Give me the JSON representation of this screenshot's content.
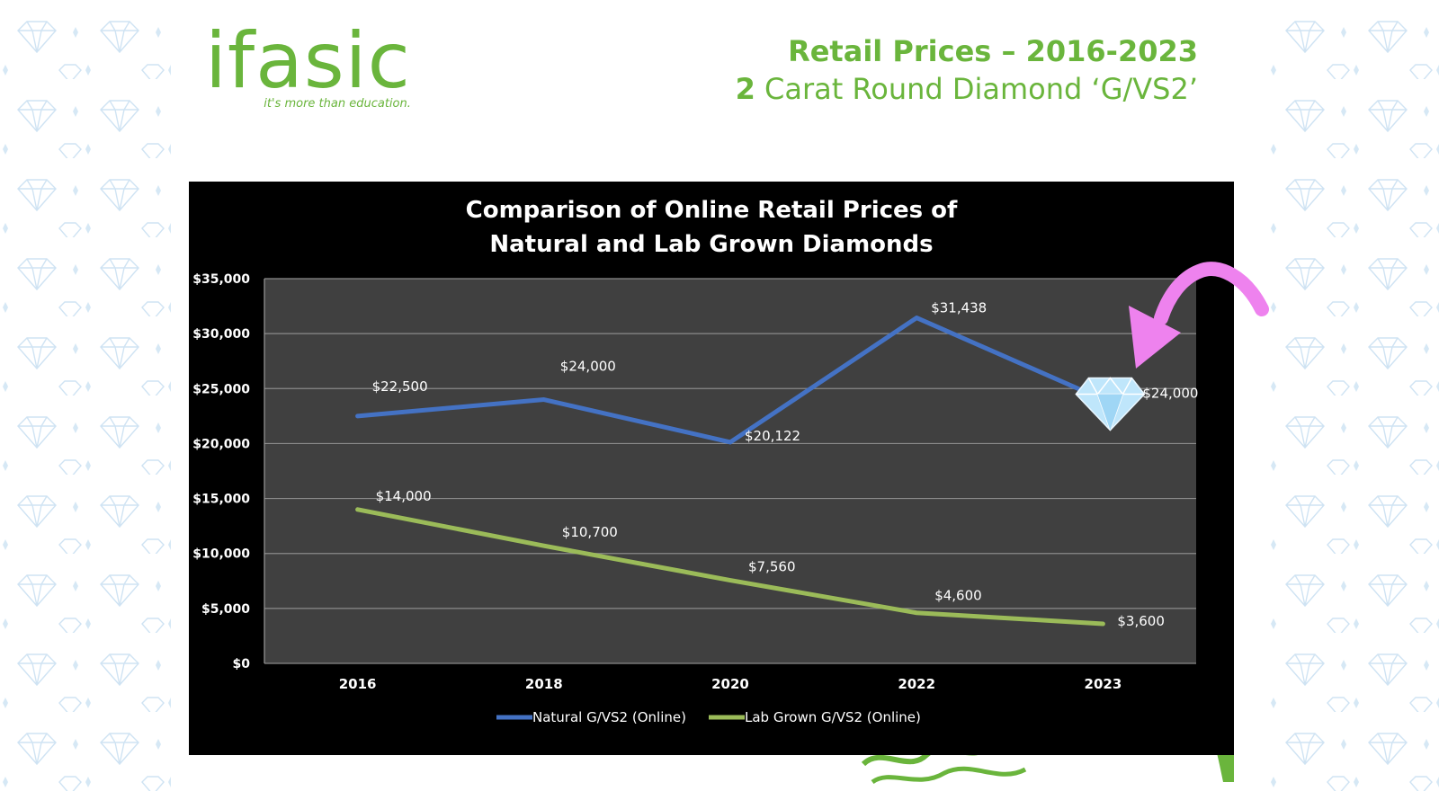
{
  "header": {
    "logo_text": "ifasic",
    "logo_tagline": "it's more than education.",
    "title": "Retail Prices – 2016-2023",
    "subtitle_bold": "2",
    "subtitle_rest": " Carat Round Diamond ‘G/VS2’"
  },
  "colors": {
    "brand_green": "#6ab53c",
    "natural_line": "#4472c4",
    "lab_line": "#9bbb59",
    "plot_bg": "#404040",
    "chart_bg": "#000000",
    "arrow_pink": "#ee82ee",
    "diamond_light": "#bfe6fb"
  },
  "icons": [
    "diamond-icon",
    "curved-arrow-icon"
  ],
  "chart_data": {
    "type": "line",
    "title_line1": "Comparison of Online Retail Prices of",
    "title_line2": "Natural and Lab Grown Diamonds",
    "categories": [
      "2016",
      "2018",
      "2020",
      "2022",
      "2023"
    ],
    "series": [
      {
        "name": "Natural G/VS2 (Online)",
        "values": [
          22500,
          24000,
          20122,
          31438,
          24000
        ],
        "labels": [
          "$22,500",
          "$24,000",
          "$20,122",
          "$31,438",
          "$24,000"
        ],
        "color": "#4472c4"
      },
      {
        "name": "Lab Grown G/VS2 (Online)",
        "values": [
          14000,
          10700,
          7560,
          4600,
          3600
        ],
        "labels": [
          "$14,000",
          "$10,700",
          "$7,560",
          "$4,600",
          "$3,600"
        ],
        "color": "#9bbb59"
      }
    ],
    "y_ticks": [
      "$0",
      "$5,000",
      "$10,000",
      "$15,000",
      "$20,000",
      "$25,000",
      "$30,000",
      "$35,000"
    ],
    "ylim": [
      0,
      35000
    ],
    "grid": true,
    "legend_position": "bottom"
  }
}
